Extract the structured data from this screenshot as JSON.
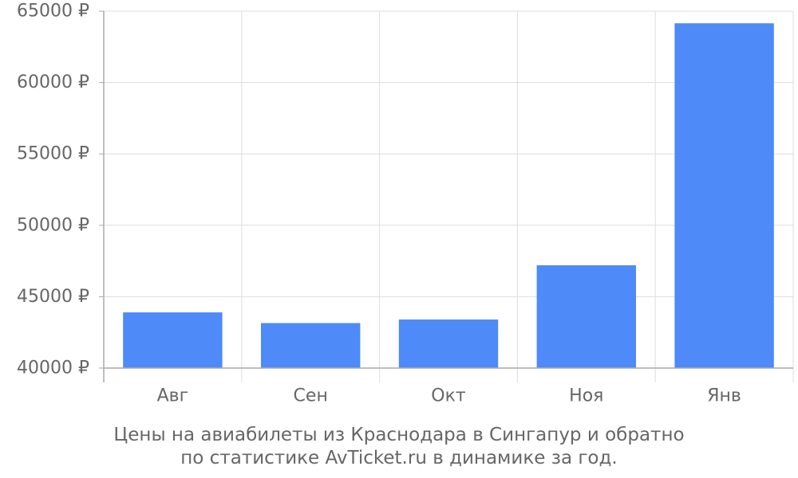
{
  "chart_data": {
    "type": "bar",
    "categories": [
      "Авг",
      "Сен",
      "Окт",
      "Ноя",
      "Янв"
    ],
    "series": [
      {
        "values": [
          43900,
          43150,
          43400,
          47200,
          64150
        ],
        "color": "#4e8af8"
      }
    ],
    "ylim": [
      40000,
      65000
    ],
    "yticks": [
      40000,
      45000,
      50000,
      55000,
      60000,
      65000
    ],
    "ytick_suffix": " ₽",
    "grid": true,
    "legend": "none",
    "xlabel": "",
    "ylabel": ""
  },
  "caption": {
    "line1": "Цены на авиабилеты из Краснодара в Сингапур и обратно",
    "line2": "по статистике AvTicket.ru в динамике за год."
  }
}
